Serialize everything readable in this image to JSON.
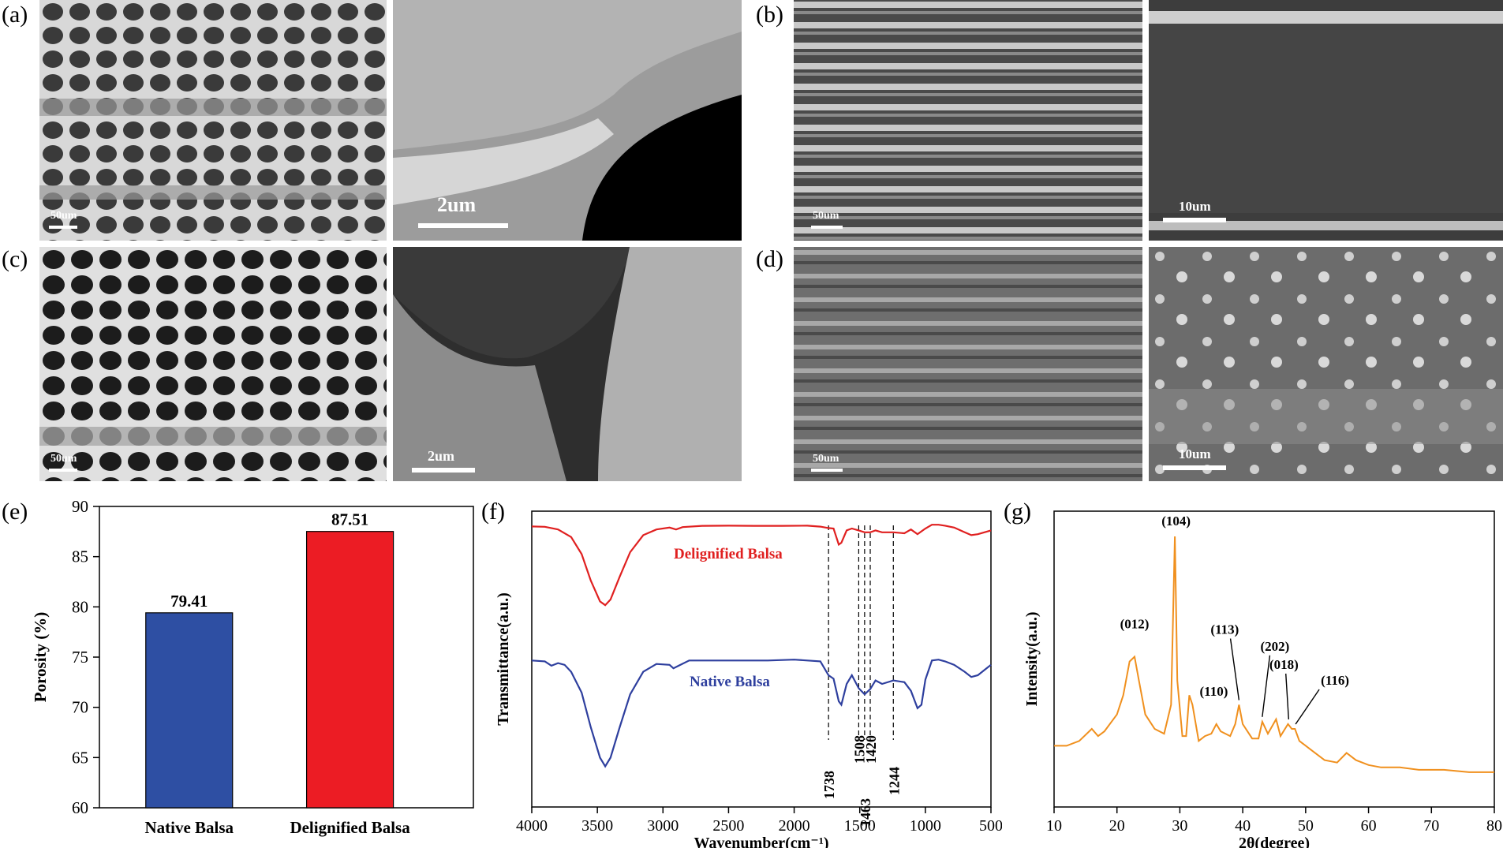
{
  "panels": {
    "a": "(a)",
    "b": "(b)",
    "c": "(c)",
    "d": "(d)",
    "e": "(e)",
    "f": "(f)",
    "g": "(g)"
  },
  "sem_images": {
    "a_left_scale": "50um",
    "a_right_scale": "2um",
    "b_left_scale": "50um",
    "b_right_scale": "10um",
    "c_left_scale": "50um",
    "c_right_scale": "2um",
    "d_left_scale": "50um",
    "d_right_scale": "10um"
  },
  "chart_data": [
    {
      "type": "bar",
      "panel": "e",
      "categories": [
        "Native Balsa",
        "Delignified Balsa"
      ],
      "values": [
        79.41,
        87.51
      ],
      "data_labels": [
        "79.41",
        "87.51"
      ],
      "colors": [
        "#2e4fa3",
        "#ec1c24"
      ],
      "ylabel": "Porosity (%)",
      "ylim": [
        60,
        90
      ],
      "yticks": [
        60,
        65,
        70,
        75,
        80,
        85,
        90
      ]
    },
    {
      "type": "line",
      "panel": "f",
      "xlabel": "Wavenumber(cm⁻¹)",
      "ylabel": "Transmittance(a.u.)",
      "xlim": [
        4000,
        500
      ],
      "xticks": [
        4000,
        3500,
        3000,
        2500,
        2000,
        1500,
        1000,
        500
      ],
      "series": [
        {
          "name": "Delignified Balsa",
          "color": "#e02020",
          "points": [
            [
              4000,
              0.28
            ],
            [
              3900,
              0.32
            ],
            [
              3800,
              0.6
            ],
            [
              3700,
              1.4
            ],
            [
              3620,
              3.2
            ],
            [
              3550,
              6.0
            ],
            [
              3480,
              8.2
            ],
            [
              3440,
              8.6
            ],
            [
              3400,
              8.0
            ],
            [
              3330,
              5.6
            ],
            [
              3250,
              3.0
            ],
            [
              3150,
              1.2
            ],
            [
              3050,
              0.6
            ],
            [
              2950,
              0.4
            ],
            [
              2900,
              0.6
            ],
            [
              2850,
              0.35
            ],
            [
              2700,
              0.22
            ],
            [
              2500,
              0.2
            ],
            [
              2300,
              0.22
            ],
            [
              2100,
              0.22
            ],
            [
              1900,
              0.2
            ],
            [
              1800,
              0.3
            ],
            [
              1738,
              0.45
            ],
            [
              1700,
              0.5
            ],
            [
              1660,
              2.2
            ],
            [
              1640,
              2.0
            ],
            [
              1600,
              0.7
            ],
            [
              1560,
              0.5
            ],
            [
              1508,
              0.7
            ],
            [
              1463,
              0.9
            ],
            [
              1420,
              0.9
            ],
            [
              1380,
              0.7
            ],
            [
              1330,
              0.9
            ],
            [
              1244,
              0.9
            ],
            [
              1160,
              1.0
            ],
            [
              1110,
              0.6
            ],
            [
              1060,
              1.1
            ],
            [
              1000,
              0.5
            ],
            [
              950,
              0.1
            ],
            [
              900,
              0.1
            ],
            [
              850,
              0.2
            ],
            [
              780,
              0.4
            ],
            [
              700,
              0.9
            ],
            [
              650,
              1.2
            ],
            [
              600,
              1.1
            ],
            [
              550,
              0.9
            ],
            [
              500,
              0.7
            ]
          ]
        },
        {
          "name": "Native Balsa",
          "color": "#2e3f9e",
          "points": [
            [
              4000,
              0.3
            ],
            [
              3900,
              0.4
            ],
            [
              3850,
              0.9
            ],
            [
              3800,
              0.6
            ],
            [
              3750,
              0.8
            ],
            [
              3700,
              1.6
            ],
            [
              3620,
              4.0
            ],
            [
              3550,
              8.0
            ],
            [
              3480,
              11.5
            ],
            [
              3440,
              12.5
            ],
            [
              3400,
              11.5
            ],
            [
              3330,
              8.0
            ],
            [
              3250,
              4.2
            ],
            [
              3150,
              1.6
            ],
            [
              3050,
              0.7
            ],
            [
              2950,
              0.8
            ],
            [
              2920,
              1.2
            ],
            [
              2880,
              0.9
            ],
            [
              2800,
              0.3
            ],
            [
              2600,
              0.3
            ],
            [
              2400,
              0.3
            ],
            [
              2200,
              0.3
            ],
            [
              2000,
              0.2
            ],
            [
              1800,
              0.4
            ],
            [
              1738,
              2.0
            ],
            [
              1700,
              2.4
            ],
            [
              1660,
              5.0
            ],
            [
              1640,
              5.4
            ],
            [
              1600,
              3.0
            ],
            [
              1560,
              2.0
            ],
            [
              1508,
              3.5
            ],
            [
              1463,
              4.2
            ],
            [
              1420,
              3.6
            ],
            [
              1380,
              2.6
            ],
            [
              1330,
              3.0
            ],
            [
              1244,
              2.6
            ],
            [
              1160,
              2.8
            ],
            [
              1110,
              3.8
            ],
            [
              1060,
              5.8
            ],
            [
              1030,
              5.4
            ],
            [
              1000,
              2.5
            ],
            [
              950,
              0.3
            ],
            [
              900,
              0.2
            ],
            [
              850,
              0.4
            ],
            [
              780,
              0.8
            ],
            [
              700,
              1.6
            ],
            [
              650,
              2.2
            ],
            [
              600,
              2.0
            ],
            [
              550,
              1.4
            ],
            [
              500,
              0.8
            ]
          ]
        }
      ],
      "annotations": [
        "1738",
        "1508",
        "1463",
        "1420",
        "1244"
      ],
      "annotation_x": [
        1738,
        1508,
        1463,
        1420,
        1244
      ]
    },
    {
      "type": "line",
      "panel": "g",
      "xlabel": "2θ(degree)",
      "ylabel": "Intensity(a.u.)",
      "xlim": [
        10,
        80
      ],
      "xticks": [
        10,
        20,
        30,
        40,
        50,
        60,
        70,
        80
      ],
      "color": "#f0901e",
      "points": [
        [
          10,
          0.13
        ],
        [
          12,
          0.13
        ],
        [
          14,
          0.15
        ],
        [
          16,
          0.2
        ],
        [
          17,
          0.17
        ],
        [
          18,
          0.19
        ],
        [
          20,
          0.26
        ],
        [
          21,
          0.34
        ],
        [
          22,
          0.48
        ],
        [
          22.8,
          0.5
        ],
        [
          23.5,
          0.4
        ],
        [
          24.5,
          0.26
        ],
        [
          26,
          0.2
        ],
        [
          27.5,
          0.18
        ],
        [
          28.6,
          0.3
        ],
        [
          29.2,
          1.0
        ],
        [
          29.6,
          0.4
        ],
        [
          30.4,
          0.17
        ],
        [
          31,
          0.17
        ],
        [
          31.5,
          0.34
        ],
        [
          32,
          0.3
        ],
        [
          33,
          0.15
        ],
        [
          34,
          0.17
        ],
        [
          35,
          0.18
        ],
        [
          35.8,
          0.22
        ],
        [
          36.5,
          0.19
        ],
        [
          38,
          0.17
        ],
        [
          38.8,
          0.22
        ],
        [
          39.4,
          0.3
        ],
        [
          40,
          0.22
        ],
        [
          41.5,
          0.16
        ],
        [
          42.5,
          0.16
        ],
        [
          43.1,
          0.23
        ],
        [
          44,
          0.18
        ],
        [
          45.3,
          0.24
        ],
        [
          46,
          0.17
        ],
        [
          47.2,
          0.22
        ],
        [
          47.8,
          0.2
        ],
        [
          48.3,
          0.2
        ],
        [
          49,
          0.15
        ],
        [
          51,
          0.11
        ],
        [
          53,
          0.07
        ],
        [
          55,
          0.06
        ],
        [
          56.5,
          0.1
        ],
        [
          58,
          0.07
        ],
        [
          60,
          0.05
        ],
        [
          62,
          0.04
        ],
        [
          65,
          0.04
        ],
        [
          68,
          0.03
        ],
        [
          72,
          0.03
        ],
        [
          76,
          0.02
        ],
        [
          80,
          0.02
        ]
      ],
      "peak_labels": [
        {
          "text": "(012)",
          "x": 22.8
        },
        {
          "text": "(104)",
          "x": 29.4
        },
        {
          "text": "(110)",
          "x": 35.9
        },
        {
          "text": "(113)",
          "x": 39.4
        },
        {
          "text": "(202)",
          "x": 43.1
        },
        {
          "text": "(018)",
          "x": 47.3
        },
        {
          "text": "(116)",
          "x": 48.4
        }
      ]
    }
  ]
}
